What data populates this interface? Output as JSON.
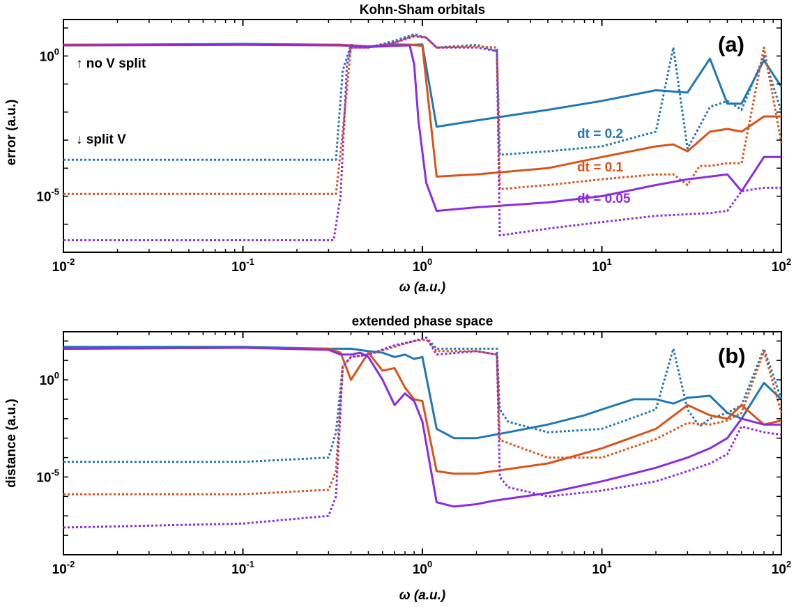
{
  "colors": {
    "dt02": "#1f77b4",
    "dt01": "#d95319",
    "dt005": "#8b2be2",
    "axis": "#000000"
  },
  "chart_data": [
    {
      "type": "line",
      "title": "Kohn-Sham orbitals",
      "panel_label": "(a)",
      "xlabel": "ω  (a.u.)",
      "ylabel": "error (a.u.)",
      "xscale": "log",
      "yscale": "log",
      "xlim": [
        0.01,
        100
      ],
      "ylim": [
        1e-07,
        20
      ],
      "xticks": [
        {
          "base": "10",
          "exp": "-2"
        },
        {
          "base": "10",
          "exp": "-1"
        },
        {
          "base": "10",
          "exp": "0"
        },
        {
          "base": "10",
          "exp": "1"
        },
        {
          "base": "10",
          "exp": "2"
        }
      ],
      "yticks": [
        {
          "value": 1,
          "base": "10",
          "exp": "0"
        },
        {
          "value": 1e-05,
          "base": "10",
          "exp": "-5"
        }
      ],
      "annotations": {
        "no_v_split": "↑  no  V  split",
        "split_v": "↓  split  V"
      },
      "series": [
        {
          "name": "dt = 0.2",
          "color_key": "dt02",
          "style": "solid",
          "label": "dt = 0.2",
          "x": [
            0.01,
            0.1,
            0.35,
            0.5,
            0.7,
            0.9,
            1.0,
            1.2,
            2,
            5,
            10,
            20,
            30,
            40,
            50,
            60,
            80,
            100
          ],
          "y": [
            2.5,
            2.7,
            2.5,
            2.2,
            2.6,
            2.5,
            2.6,
            0.003,
            0.005,
            0.012,
            0.025,
            0.06,
            0.05,
            0.8,
            0.02,
            0.02,
            0.7,
            0.08
          ]
        },
        {
          "name": "dt = 0.2 split V",
          "color_key": "dt02",
          "style": "dotted",
          "x": [
            0.01,
            0.1,
            0.33,
            0.36,
            0.4,
            0.5,
            0.7,
            0.9,
            1.05,
            1.2,
            2,
            2.6,
            2.7,
            5,
            10,
            20,
            25,
            30,
            40,
            50,
            60,
            80,
            100
          ],
          "y": [
            0.0002,
            0.0002,
            0.0002,
            0.3,
            2.5,
            2.0,
            3.5,
            6.0,
            4.5,
            2.0,
            2.5,
            1.5,
            0.0003,
            0.0004,
            0.0006,
            0.002,
            2.0,
            0.0005,
            0.015,
            0.025,
            0.012,
            1.0,
            0.01
          ]
        },
        {
          "name": "dt = 0.1",
          "color_key": "dt01",
          "style": "solid",
          "label": "dt = 0.1",
          "x": [
            0.01,
            0.1,
            0.35,
            0.5,
            0.7,
            0.85,
            1.0,
            1.2,
            2,
            5,
            10,
            20,
            25,
            30,
            40,
            50,
            60,
            80,
            100
          ],
          "y": [
            2.5,
            2.6,
            2.5,
            2.2,
            2.4,
            2.5,
            2.3,
            5e-05,
            6e-05,
            0.0001,
            0.00025,
            0.0006,
            0.0007,
            0.0004,
            0.002,
            0.0025,
            0.002,
            0.007,
            0.007
          ]
        },
        {
          "name": "dt = 0.1 split V",
          "color_key": "dt01",
          "style": "dotted",
          "x": [
            0.01,
            0.1,
            0.33,
            0.36,
            0.4,
            0.5,
            0.7,
            0.9,
            1.05,
            1.2,
            2,
            2.6,
            2.7,
            5,
            10,
            20,
            25,
            30,
            35,
            40,
            50,
            60,
            80,
            100
          ],
          "y": [
            1.2e-05,
            1.2e-05,
            1.2e-05,
            0.002,
            2.0,
            2.0,
            3.0,
            5.5,
            4.5,
            2.0,
            2.2,
            2.0,
            1.8e-05,
            2.5e-05,
            4e-05,
            6e-05,
            6e-05,
            2.5e-05,
            0.00012,
            0.00012,
            0.00015,
            0.00015,
            2.0,
            0.0008
          ]
        },
        {
          "name": "dt = 0.05",
          "color_key": "dt005",
          "style": "solid",
          "label": "dt = 0.05",
          "x": [
            0.01,
            0.1,
            0.35,
            0.5,
            0.7,
            0.85,
            0.9,
            0.95,
            1.05,
            1.2,
            2,
            5,
            10,
            20,
            30,
            40,
            50,
            60,
            80,
            100
          ],
          "y": [
            2.4,
            2.5,
            2.4,
            2.1,
            2.3,
            2.4,
            0.5,
            0.005,
            3e-05,
            3e-06,
            4e-06,
            6e-06,
            1e-05,
            2.5e-05,
            4e-05,
            5e-05,
            6e-05,
            1.5e-05,
            0.00025,
            0.00025
          ]
        },
        {
          "name": "dt = 0.05 split V",
          "color_key": "dt005",
          "style": "dotted",
          "x": [
            0.01,
            0.1,
            0.32,
            0.35,
            0.38,
            0.4,
            0.5,
            0.7,
            0.9,
            1.05,
            1.2,
            2,
            2.6,
            2.7,
            5,
            10,
            20,
            40,
            50,
            60,
            80,
            100
          ],
          "y": [
            2.7e-07,
            2.7e-07,
            2.7e-07,
            1e-05,
            0.5,
            2.0,
            2.0,
            3.0,
            5.0,
            4.5,
            2.0,
            2.0,
            1.5,
            4e-07,
            7e-07,
            1.2e-06,
            2e-06,
            2.5e-06,
            3e-06,
            1.5e-05,
            2e-05,
            2e-05
          ]
        }
      ]
    },
    {
      "type": "line",
      "title": "extended phase space",
      "panel_label": "(b)",
      "xlabel": "ω  (a.u.)",
      "ylabel": "distance (a.u.)",
      "xscale": "log",
      "yscale": "log",
      "xlim": [
        0.01,
        100
      ],
      "ylim": [
        1e-09,
        300
      ],
      "xticks": [
        {
          "base": "10",
          "exp": "-2"
        },
        {
          "base": "10",
          "exp": "-1"
        },
        {
          "base": "10",
          "exp": "0"
        },
        {
          "base": "10",
          "exp": "1"
        },
        {
          "base": "10",
          "exp": "2"
        }
      ],
      "yticks": [
        {
          "value": 1,
          "base": "10",
          "exp": "0"
        },
        {
          "value": 1e-05,
          "base": "10",
          "exp": "-5"
        }
      ],
      "series": [
        {
          "name": "dt = 0.2",
          "color_key": "dt02",
          "style": "solid",
          "x": [
            0.01,
            0.1,
            0.3,
            0.4,
            0.5,
            0.6,
            0.7,
            0.8,
            0.9,
            1.0,
            1.2,
            1.5,
            2,
            3,
            5,
            8,
            10,
            15,
            20,
            25,
            30,
            40,
            50,
            60,
            80,
            100
          ],
          "y": [
            50,
            50,
            40,
            40,
            30,
            25,
            15,
            20,
            12,
            15,
            0.003,
            0.001,
            0.001,
            0.002,
            0.005,
            0.015,
            0.03,
            0.1,
            0.1,
            0.06,
            0.12,
            0.15,
            0.02,
            0.01,
            0.7,
            0.1
          ]
        },
        {
          "name": "dt = 0.2 split V",
          "color_key": "dt02",
          "style": "dotted",
          "x": [
            0.01,
            0.1,
            0.3,
            0.33,
            0.36,
            0.4,
            0.5,
            0.7,
            0.9,
            1.05,
            1.2,
            2,
            2.6,
            2.7,
            3,
            5,
            10,
            20,
            25,
            30,
            35,
            40,
            50,
            60,
            80,
            100
          ],
          "y": [
            6e-05,
            6e-05,
            0.0001,
            0.002,
            5,
            15,
            20,
            60,
            100,
            150,
            40,
            40,
            40,
            0.03,
            0.007,
            0.002,
            0.003,
            0.03,
            40,
            0.03,
            0.004,
            0.01,
            0.02,
            0.05,
            40,
            0.1
          ]
        },
        {
          "name": "dt = 0.1",
          "color_key": "dt01",
          "style": "solid",
          "x": [
            0.01,
            0.1,
            0.3,
            0.35,
            0.4,
            0.5,
            0.6,
            0.7,
            0.8,
            0.9,
            1.0,
            1.2,
            1.5,
            2,
            5,
            10,
            20,
            30,
            40,
            50,
            60,
            80,
            100
          ],
          "y": [
            40,
            45,
            40,
            25,
            1.0,
            25,
            3,
            4,
            0.4,
            0.1,
            0.08,
            2e-05,
            1.5e-05,
            1.5e-05,
            5e-05,
            0.0003,
            0.003,
            0.05,
            0.015,
            0.01,
            0.05,
            0.005,
            0.008
          ]
        },
        {
          "name": "dt = 0.1 split V",
          "color_key": "dt01",
          "style": "dotted",
          "x": [
            0.01,
            0.1,
            0.3,
            0.33,
            0.36,
            0.4,
            0.5,
            0.7,
            0.9,
            1.05,
            1.2,
            2,
            2.6,
            2.7,
            5,
            10,
            20,
            30,
            40,
            50,
            60,
            80,
            100
          ],
          "y": [
            1.3e-06,
            1.3e-06,
            2.2e-06,
            2e-05,
            5,
            15,
            20,
            50,
            100,
            120,
            30,
            30,
            20,
            0.0008,
            0.0001,
            0.0001,
            0.0009,
            0.006,
            0.005,
            0.008,
            0.02,
            30,
            0.02
          ]
        },
        {
          "name": "dt = 0.05",
          "color_key": "dt005",
          "style": "solid",
          "x": [
            0.01,
            0.1,
            0.3,
            0.35,
            0.4,
            0.45,
            0.5,
            0.6,
            0.7,
            0.8,
            0.9,
            1.0,
            1.2,
            1.5,
            2,
            2.5,
            5,
            10,
            20,
            30,
            40,
            50,
            60,
            80,
            100
          ],
          "y": [
            40,
            45,
            35,
            20,
            20,
            25,
            15,
            1,
            0.05,
            0.2,
            0.08,
            0.007,
            5e-07,
            3e-07,
            4e-07,
            6e-07,
            1.5e-06,
            6e-06,
            3e-05,
            0.0001,
            0.0003,
            0.001,
            0.01,
            0.005,
            0.005
          ]
        },
        {
          "name": "dt = 0.05 split V",
          "color_key": "dt005",
          "style": "dotted",
          "x": [
            0.01,
            0.1,
            0.3,
            0.33,
            0.36,
            0.4,
            0.5,
            0.7,
            0.9,
            1.05,
            1.2,
            2,
            2.6,
            2.7,
            3,
            5,
            10,
            20,
            30,
            40,
            50,
            60,
            80,
            100
          ],
          "y": [
            2.5e-08,
            4e-08,
            1e-07,
            1e-06,
            5,
            15,
            20,
            60,
            100,
            150,
            20,
            30,
            20,
            1e-05,
            3e-06,
            1e-06,
            2e-06,
            6e-06,
            2e-05,
            5e-05,
            0.00015,
            0.004,
            0.002,
            0.0015
          ]
        }
      ]
    }
  ]
}
